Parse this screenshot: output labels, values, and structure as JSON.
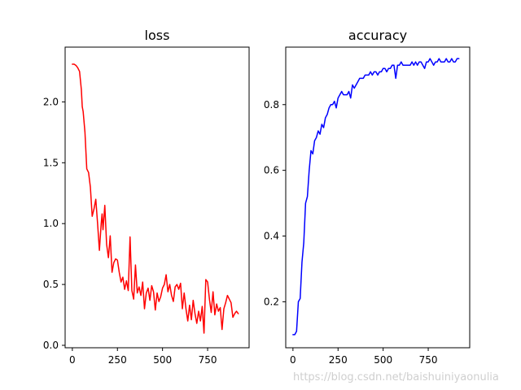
{
  "watermark": "https://blog.csdn.net/baishuiniyaonulia",
  "chart_data": [
    {
      "type": "line",
      "title": "loss",
      "xlabel": "",
      "ylabel": "",
      "xlim": [
        -40,
        980
      ],
      "ylim": [
        -0.02,
        2.45
      ],
      "xticks": [
        0,
        250,
        500,
        750
      ],
      "yticks": [
        0.0,
        0.5,
        1.0,
        1.5,
        2.0
      ],
      "xtick_labels": [
        "0",
        "250",
        "500",
        "750"
      ],
      "ytick_labels": [
        "0.0",
        "0.5",
        "1.0",
        "1.5",
        "2.0"
      ],
      "grid": false,
      "color": "#ff0000",
      "series": [
        {
          "x": [
            0,
            10,
            20,
            30,
            40,
            50,
            55,
            60,
            70,
            80,
            90,
            100,
            110,
            120,
            130,
            140,
            150,
            160,
            165,
            170,
            180,
            190,
            200,
            210,
            220,
            230,
            240,
            250,
            260,
            270,
            280,
            290,
            300,
            310,
            320,
            330,
            340,
            350,
            360,
            370,
            380,
            390,
            400,
            410,
            420,
            430,
            440,
            450,
            460,
            470,
            480,
            490,
            500,
            510,
            520,
            530,
            540,
            550,
            560,
            570,
            580,
            590,
            600,
            610,
            620,
            630,
            640,
            650,
            660,
            670,
            680,
            690,
            700,
            710,
            720,
            730,
            740,
            750,
            760,
            770,
            780,
            790,
            800,
            810,
            820,
            830,
            840,
            850,
            860,
            870,
            880,
            890,
            900,
            910,
            920
          ],
          "y": [
            2.31,
            2.31,
            2.3,
            2.28,
            2.25,
            2.1,
            1.96,
            1.92,
            1.75,
            1.45,
            1.42,
            1.3,
            1.06,
            1.12,
            1.2,
            1.0,
            0.78,
            1.0,
            1.08,
            0.95,
            1.15,
            0.83,
            0.72,
            0.9,
            0.6,
            0.68,
            0.71,
            0.7,
            0.6,
            0.52,
            0.56,
            0.46,
            0.53,
            0.45,
            0.89,
            0.45,
            0.38,
            0.66,
            0.43,
            0.48,
            0.41,
            0.52,
            0.3,
            0.43,
            0.47,
            0.37,
            0.49,
            0.44,
            0.29,
            0.43,
            0.36,
            0.4,
            0.47,
            0.5,
            0.58,
            0.44,
            0.5,
            0.41,
            0.36,
            0.48,
            0.5,
            0.46,
            0.51,
            0.3,
            0.43,
            0.3,
            0.2,
            0.33,
            0.21,
            0.37,
            0.26,
            0.18,
            0.28,
            0.2,
            0.32,
            0.1,
            0.54,
            0.52,
            0.38,
            0.27,
            0.44,
            0.25,
            0.34,
            0.28,
            0.31,
            0.13,
            0.3,
            0.35,
            0.41,
            0.38,
            0.35,
            0.23,
            0.26,
            0.28,
            0.26
          ]
        }
      ]
    },
    {
      "type": "line",
      "title": "accuracy",
      "xlabel": "",
      "ylabel": "",
      "xlim": [
        -40,
        980
      ],
      "ylim": [
        0.06,
        0.975
      ],
      "xticks": [
        0,
        250,
        500,
        750
      ],
      "yticks": [
        0.2,
        0.4,
        0.6,
        0.8
      ],
      "xtick_labels": [
        "0",
        "250",
        "500",
        "750"
      ],
      "ytick_labels": [
        "0.2",
        "0.4",
        "0.6",
        "0.8"
      ],
      "grid": false,
      "color": "#0000ff",
      "series": [
        {
          "x": [
            0,
            10,
            20,
            30,
            40,
            50,
            60,
            70,
            80,
            90,
            100,
            110,
            120,
            130,
            140,
            150,
            160,
            170,
            180,
            190,
            200,
            210,
            220,
            230,
            240,
            250,
            260,
            270,
            280,
            290,
            300,
            310,
            320,
            330,
            340,
            350,
            360,
            370,
            380,
            390,
            400,
            410,
            420,
            430,
            440,
            450,
            460,
            470,
            480,
            490,
            500,
            510,
            520,
            530,
            540,
            550,
            560,
            570,
            580,
            590,
            600,
            610,
            620,
            630,
            640,
            650,
            660,
            670,
            680,
            690,
            700,
            710,
            720,
            730,
            740,
            750,
            760,
            770,
            780,
            790,
            800,
            810,
            820,
            830,
            840,
            850,
            860,
            870,
            880,
            890,
            900,
            910,
            920
          ],
          "y": [
            0.1,
            0.1,
            0.11,
            0.2,
            0.21,
            0.32,
            0.38,
            0.5,
            0.52,
            0.6,
            0.66,
            0.65,
            0.69,
            0.7,
            0.72,
            0.71,
            0.74,
            0.73,
            0.76,
            0.77,
            0.79,
            0.8,
            0.8,
            0.81,
            0.79,
            0.82,
            0.83,
            0.84,
            0.83,
            0.83,
            0.83,
            0.84,
            0.82,
            0.86,
            0.85,
            0.86,
            0.87,
            0.88,
            0.88,
            0.88,
            0.89,
            0.89,
            0.89,
            0.9,
            0.89,
            0.9,
            0.9,
            0.89,
            0.9,
            0.9,
            0.91,
            0.91,
            0.9,
            0.91,
            0.91,
            0.92,
            0.92,
            0.88,
            0.92,
            0.92,
            0.93,
            0.92,
            0.92,
            0.92,
            0.92,
            0.92,
            0.93,
            0.92,
            0.93,
            0.92,
            0.93,
            0.93,
            0.92,
            0.91,
            0.93,
            0.93,
            0.94,
            0.93,
            0.92,
            0.93,
            0.93,
            0.94,
            0.93,
            0.93,
            0.93,
            0.94,
            0.93,
            0.93,
            0.94,
            0.93,
            0.93,
            0.94,
            0.94
          ]
        }
      ]
    }
  ]
}
